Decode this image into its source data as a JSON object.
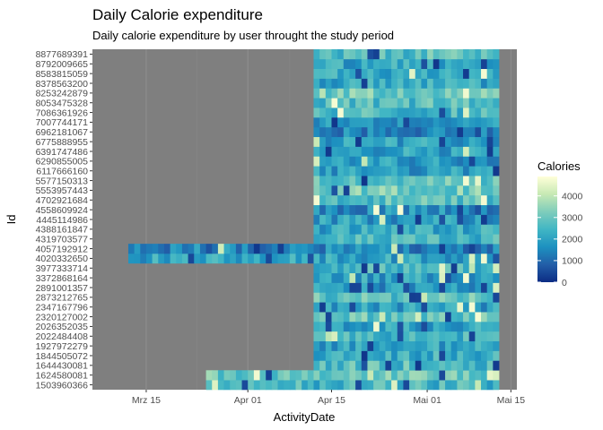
{
  "chart_data": {
    "type": "heatmap",
    "title": "Daily Calorie expenditure",
    "subtitle": "Daily calorie expenditure by user throught the study period",
    "xlabel": "ActivityDate",
    "ylabel": "Id",
    "x_ticks": [
      {
        "date": "2016-03-15",
        "label": "Mrz 15"
      },
      {
        "date": "2016-04-01",
        "label": "Apr 01"
      },
      {
        "date": "2016-04-15",
        "label": "Apr 15"
      },
      {
        "date": "2016-05-01",
        "label": "Mai 01"
      },
      {
        "date": "2016-05-15",
        "label": "Mai 15"
      }
    ],
    "x_range": [
      "2016-03-06",
      "2016-05-16"
    ],
    "ids": [
      "1503960366",
      "1624580081",
      "1644430081",
      "1844505072",
      "1927972279",
      "2022484408",
      "2026352035",
      "2320127002",
      "2347167796",
      "2873212765",
      "2891001357",
      "3372868164",
      "3977333714",
      "4020332650",
      "4057192912",
      "4319703577",
      "4388161847",
      "4445114986",
      "4558609924",
      "4702921684",
      "5553957443",
      "5577150313",
      "6117666160",
      "6290855005",
      "6391747486",
      "6775888955",
      "6962181067",
      "7007744171",
      "7086361926",
      "8053475328",
      "8253242879",
      "8378563200",
      "8583815059",
      "8792009665",
      "8877689391"
    ],
    "date_ranges": [
      [
        "2016-03-25",
        "2016-05-12"
      ],
      [
        "2016-03-25",
        "2016-05-12"
      ],
      [
        "2016-04-12",
        "2016-05-12"
      ],
      [
        "2016-04-12",
        "2016-05-12"
      ],
      [
        "2016-04-12",
        "2016-05-12"
      ],
      [
        "2016-04-12",
        "2016-05-12"
      ],
      [
        "2016-04-12",
        "2016-05-12"
      ],
      [
        "2016-04-12",
        "2016-05-12"
      ],
      [
        "2016-04-12",
        "2016-05-12"
      ],
      [
        "2016-04-12",
        "2016-05-12"
      ],
      [
        "2016-04-12",
        "2016-05-12"
      ],
      [
        "2016-04-12",
        "2016-05-12"
      ],
      [
        "2016-04-12",
        "2016-05-12"
      ],
      [
        "2016-03-12",
        "2016-05-12"
      ],
      [
        "2016-03-12",
        "2016-05-12"
      ],
      [
        "2016-04-12",
        "2016-05-12"
      ],
      [
        "2016-04-12",
        "2016-05-12"
      ],
      [
        "2016-04-12",
        "2016-05-12"
      ],
      [
        "2016-04-12",
        "2016-05-12"
      ],
      [
        "2016-04-12",
        "2016-05-12"
      ],
      [
        "2016-04-12",
        "2016-05-12"
      ],
      [
        "2016-04-12",
        "2016-05-12"
      ],
      [
        "2016-04-12",
        "2016-05-12"
      ],
      [
        "2016-04-12",
        "2016-05-12"
      ],
      [
        "2016-04-12",
        "2016-05-12"
      ],
      [
        "2016-04-12",
        "2016-05-12"
      ],
      [
        "2016-04-12",
        "2016-05-12"
      ],
      [
        "2016-04-12",
        "2016-05-12"
      ],
      [
        "2016-04-12",
        "2016-05-12"
      ],
      [
        "2016-04-12",
        "2016-05-12"
      ],
      [
        "2016-04-12",
        "2016-05-12"
      ],
      [
        "2016-04-12",
        "2016-05-12"
      ],
      [
        "2016-04-12",
        "2016-05-12"
      ],
      [
        "2016-04-12",
        "2016-05-12"
      ],
      [
        "2016-04-12",
        "2016-05-12"
      ]
    ],
    "color_scale": {
      "title": "Calories",
      "breaks": [
        0,
        1000,
        2000,
        3000,
        4000
      ],
      "break_labels": [
        "0",
        "1000",
        "2000",
        "3000",
        "4000"
      ],
      "range": [
        0,
        4900
      ],
      "colors": [
        "#0c2c84",
        "#225ea8",
        "#1d91c0",
        "#41b6c4",
        "#7fcdbb",
        "#c7e9b4",
        "#ffffd9"
      ]
    },
    "background_color": "#7f7f7f",
    "grid": true
  }
}
